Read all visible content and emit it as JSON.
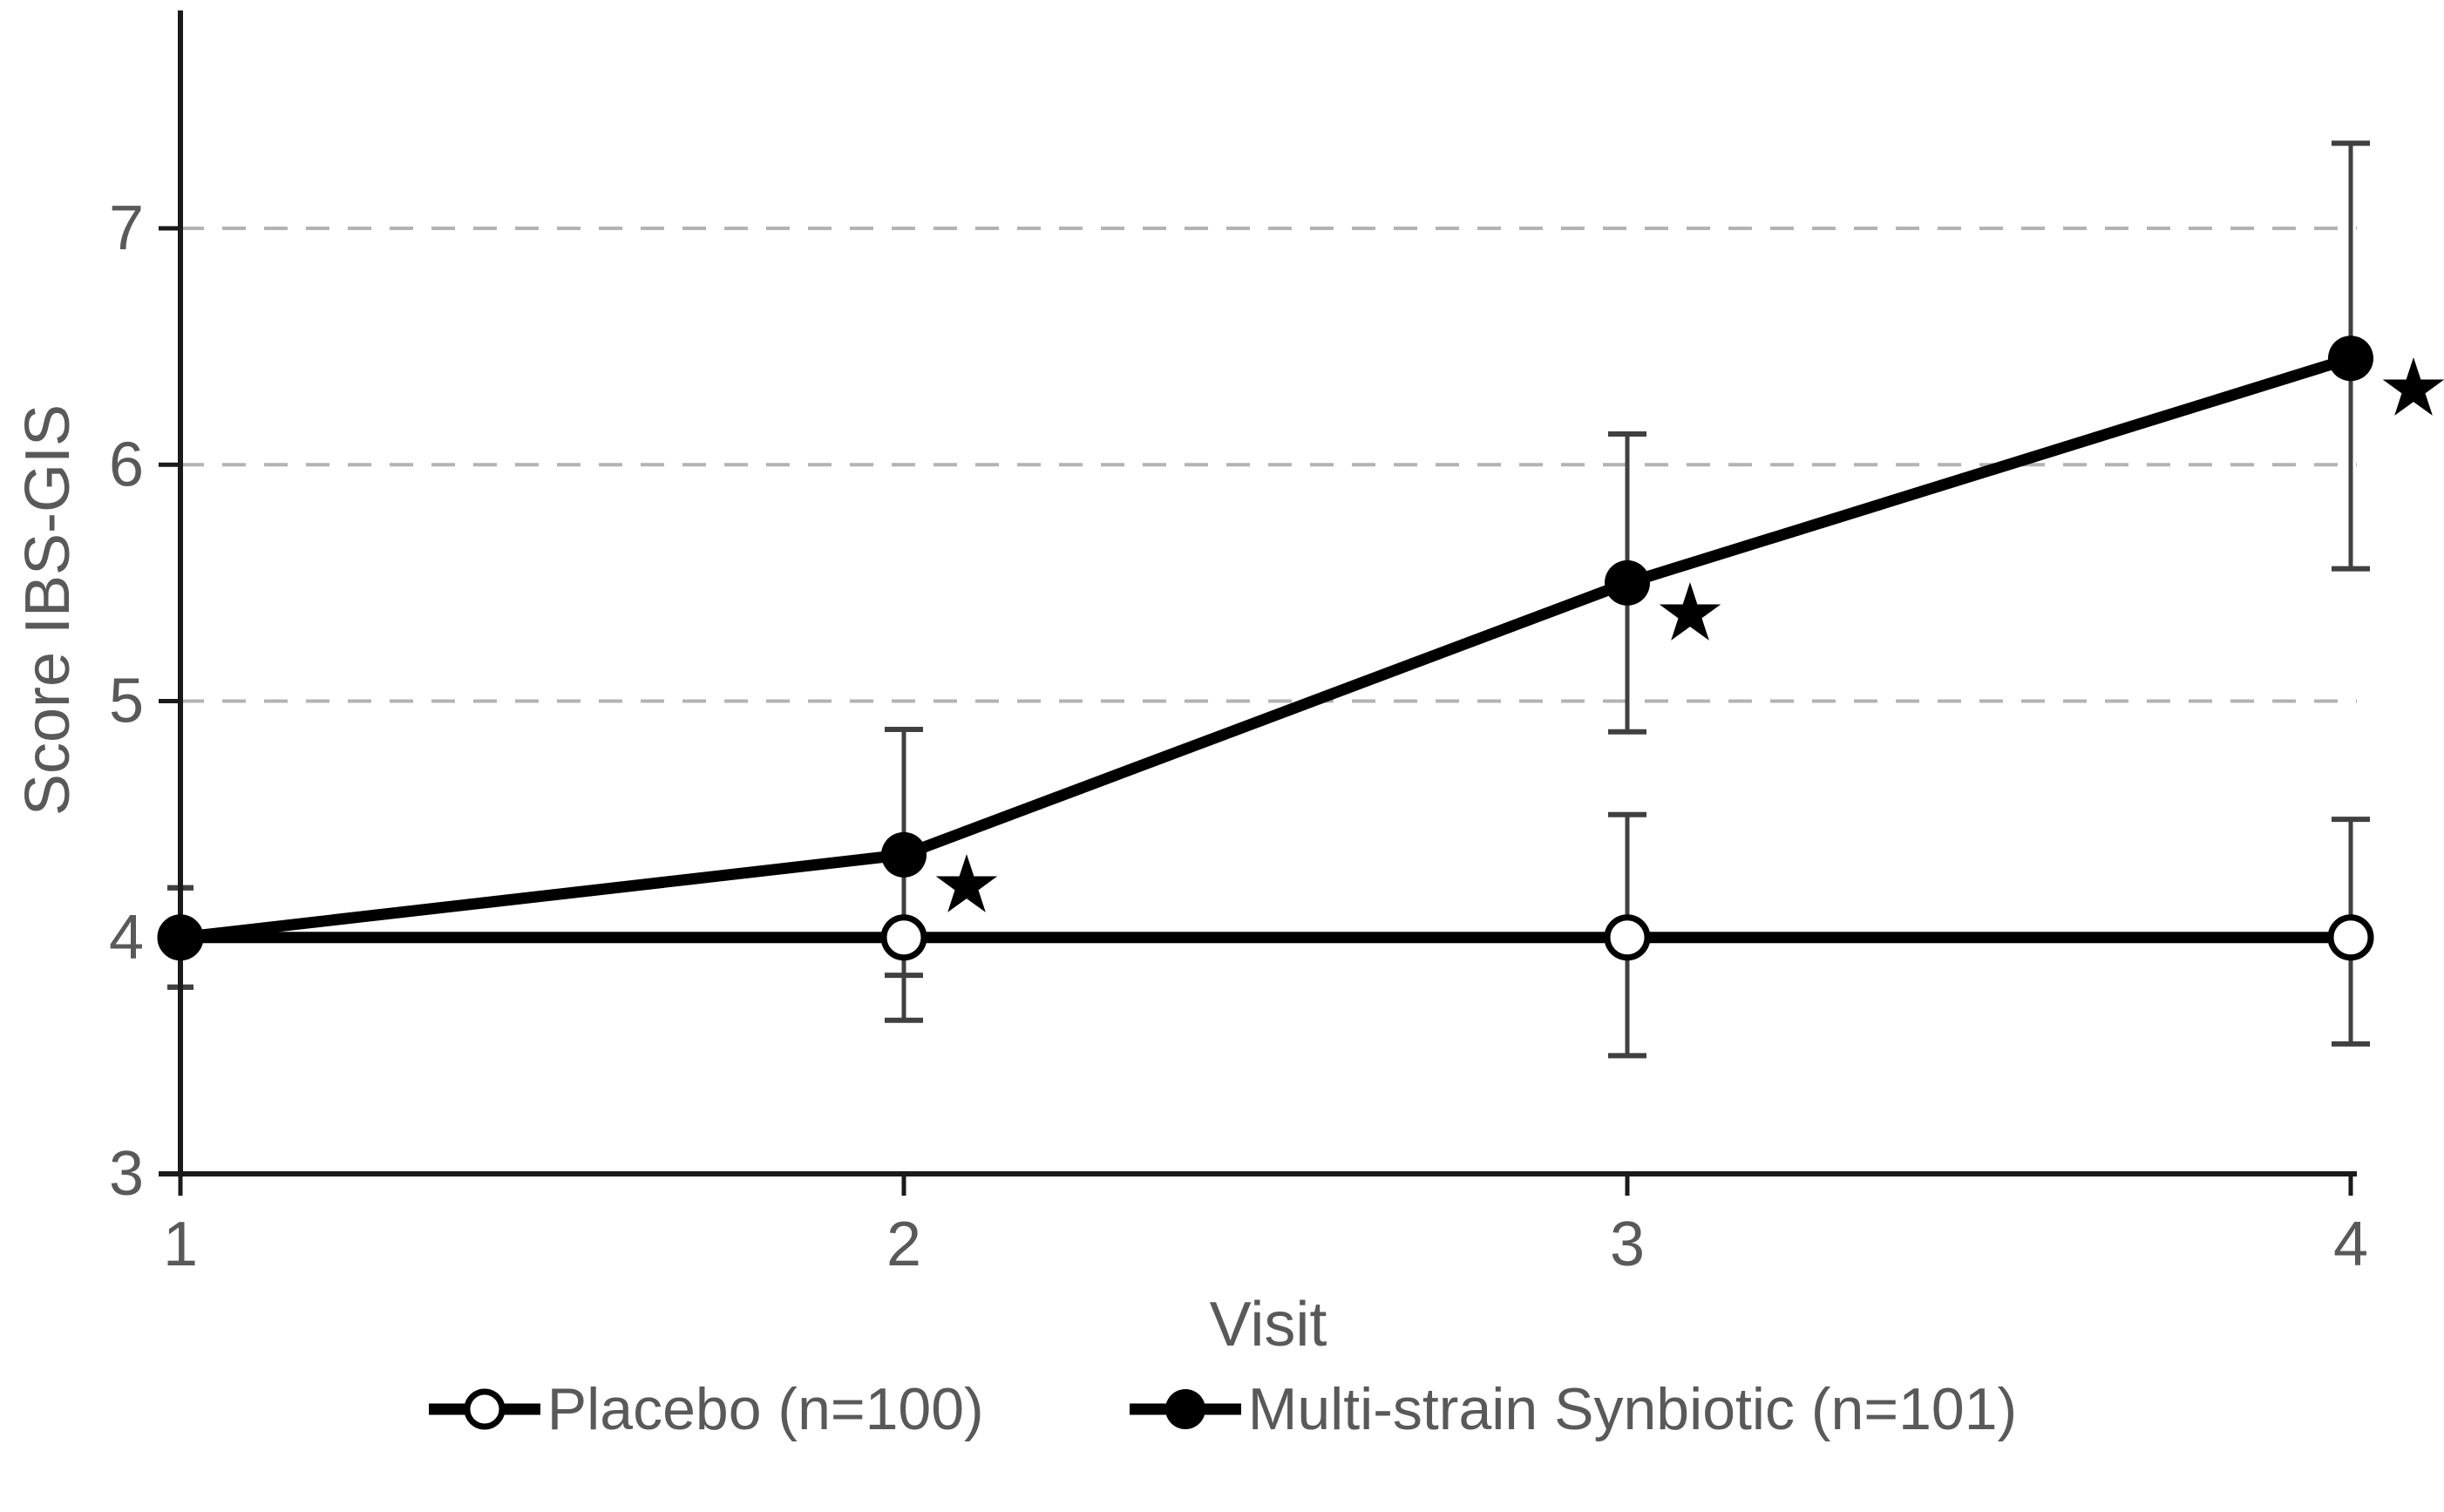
{
  "chart_data": {
    "type": "line",
    "title": "",
    "xlabel": "Visit",
    "ylabel": "Score IBS-GIS",
    "x": [
      1,
      2,
      3,
      4
    ],
    "xlim": [
      1,
      4
    ],
    "ylim": [
      3,
      7
    ],
    "yticks": [
      3,
      4,
      5,
      6,
      7
    ],
    "xticks": [
      1,
      2,
      3,
      4
    ],
    "grid": "horizontal dashed gridlines at y = 4, 5, 6, 7",
    "legend_position": "bottom",
    "significance_symbol": "★",
    "series": [
      {
        "name": "Placebo (n=100)",
        "marker": "open-circle",
        "line_color": "#000000",
        "values": [
          4.0,
          4.0,
          4.0,
          4.0
        ],
        "err_lo": [
          3.79,
          3.65,
          3.5,
          3.55
        ],
        "err_hi": [
          4.21,
          4.35,
          4.52,
          4.5
        ],
        "significance": [
          false,
          false,
          false,
          false
        ]
      },
      {
        "name": "Multi-strain Synbiotic (n=101)",
        "marker": "filled-circle",
        "line_color": "#000000",
        "values": [
          4.0,
          4.35,
          5.5,
          6.45
        ],
        "err_lo": [
          3.79,
          3.84,
          4.87,
          5.56
        ],
        "err_hi": [
          4.21,
          4.88,
          6.13,
          7.36
        ],
        "significance": [
          false,
          true,
          true,
          true
        ]
      }
    ],
    "colors": {
      "series_line": "#000000",
      "error_bar": "#404040",
      "gridline": "#b3b3b3",
      "axis": "#1a1a1a",
      "tick_text": "#595959",
      "background": "#ffffff"
    }
  }
}
